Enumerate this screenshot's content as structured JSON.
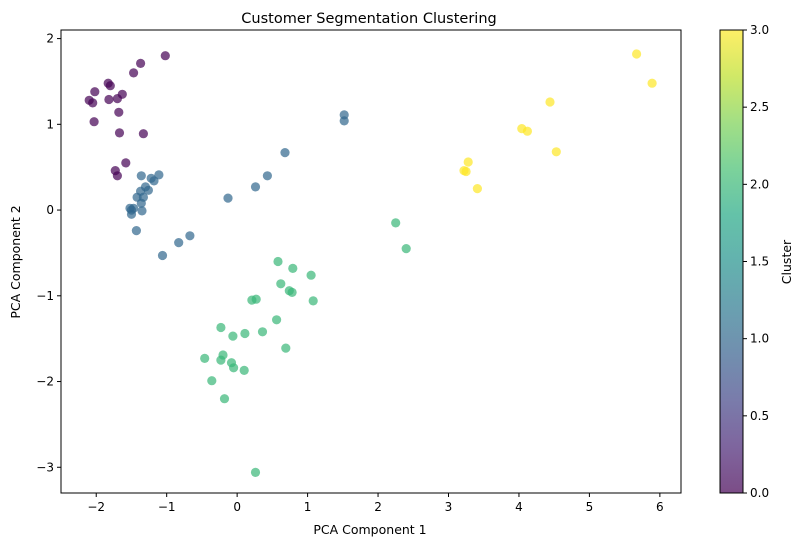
{
  "chart_data": {
    "type": "scatter",
    "title": "Customer Segmentation Clustering",
    "xlabel": "PCA Component 1",
    "ylabel": "PCA Component 2",
    "xlim": [
      -2.5,
      6.3
    ],
    "ylim": [
      -3.3,
      2.1
    ],
    "x_ticks": [
      -2,
      -1,
      0,
      1,
      2,
      3,
      4,
      5,
      6
    ],
    "x_tick_labels": [
      "−2",
      "−1",
      "0",
      "1",
      "2",
      "3",
      "4",
      "5",
      "6"
    ],
    "y_ticks": [
      -3,
      -2,
      -1,
      0,
      1,
      2
    ],
    "y_tick_labels": [
      "−3",
      "−2",
      "−1",
      "0",
      "1",
      "2"
    ],
    "grid": false,
    "colormap": "viridis",
    "point_alpha": 0.7,
    "colorbar": {
      "label": "Cluster",
      "range": [
        0.0,
        3.0
      ],
      "ticks": [
        0.0,
        0.5,
        1.0,
        1.5,
        2.0,
        2.5,
        3.0
      ],
      "tick_labels": [
        "0.0",
        "0.5",
        "1.0",
        "1.5",
        "2.0",
        "2.5",
        "3.0"
      ]
    },
    "points": [
      {
        "x": -2.1,
        "y": 1.28,
        "cluster": 0
      },
      {
        "x": -2.05,
        "y": 1.25,
        "cluster": 0
      },
      {
        "x": -2.02,
        "y": 1.38,
        "cluster": 0
      },
      {
        "x": -2.03,
        "y": 1.03,
        "cluster": 0
      },
      {
        "x": -1.83,
        "y": 1.48,
        "cluster": 0
      },
      {
        "x": -1.8,
        "y": 1.45,
        "cluster": 0
      },
      {
        "x": -1.82,
        "y": 1.29,
        "cluster": 0
      },
      {
        "x": -1.7,
        "y": 1.3,
        "cluster": 0
      },
      {
        "x": -1.63,
        "y": 1.35,
        "cluster": 0
      },
      {
        "x": -1.68,
        "y": 1.14,
        "cluster": 0
      },
      {
        "x": -1.67,
        "y": 0.9,
        "cluster": 0
      },
      {
        "x": -1.33,
        "y": 0.89,
        "cluster": 0
      },
      {
        "x": -1.58,
        "y": 0.55,
        "cluster": 0
      },
      {
        "x": -1.73,
        "y": 0.46,
        "cluster": 0
      },
      {
        "x": -1.7,
        "y": 0.4,
        "cluster": 0
      },
      {
        "x": -1.47,
        "y": 1.6,
        "cluster": 0
      },
      {
        "x": -1.37,
        "y": 1.71,
        "cluster": 0
      },
      {
        "x": -1.02,
        "y": 1.8,
        "cluster": 0
      },
      {
        "x": -1.52,
        "y": 0.02,
        "cluster": 1
      },
      {
        "x": -1.5,
        "y": -0.05,
        "cluster": 1
      },
      {
        "x": -1.47,
        "y": 0.02,
        "cluster": 1
      },
      {
        "x": -1.5,
        "y": 0.0,
        "cluster": 1
      },
      {
        "x": -1.42,
        "y": 0.15,
        "cluster": 1
      },
      {
        "x": -1.37,
        "y": 0.22,
        "cluster": 1
      },
      {
        "x": -1.36,
        "y": 0.08,
        "cluster": 1
      },
      {
        "x": -1.33,
        "y": 0.15,
        "cluster": 1
      },
      {
        "x": -1.35,
        "y": -0.01,
        "cluster": 1
      },
      {
        "x": -1.3,
        "y": 0.27,
        "cluster": 1
      },
      {
        "x": -1.26,
        "y": 0.23,
        "cluster": 1
      },
      {
        "x": -1.22,
        "y": 0.37,
        "cluster": 1
      },
      {
        "x": -1.18,
        "y": 0.34,
        "cluster": 1
      },
      {
        "x": -1.11,
        "y": 0.41,
        "cluster": 1
      },
      {
        "x": -1.36,
        "y": 0.4,
        "cluster": 1
      },
      {
        "x": -1.43,
        "y": -0.24,
        "cluster": 1
      },
      {
        "x": -1.06,
        "y": -0.53,
        "cluster": 1
      },
      {
        "x": -0.83,
        "y": -0.38,
        "cluster": 1
      },
      {
        "x": -0.67,
        "y": -0.3,
        "cluster": 1
      },
      {
        "x": -0.13,
        "y": 0.14,
        "cluster": 1
      },
      {
        "x": 0.26,
        "y": 0.27,
        "cluster": 1
      },
      {
        "x": 0.43,
        "y": 0.4,
        "cluster": 1
      },
      {
        "x": 0.68,
        "y": 0.67,
        "cluster": 1
      },
      {
        "x": 1.52,
        "y": 1.11,
        "cluster": 1
      },
      {
        "x": 1.52,
        "y": 1.04,
        "cluster": 1
      },
      {
        "x": 0.58,
        "y": -0.6,
        "cluster": 2
      },
      {
        "x": 0.79,
        "y": -0.68,
        "cluster": 2
      },
      {
        "x": 1.05,
        "y": -0.76,
        "cluster": 2
      },
      {
        "x": 0.62,
        "y": -0.86,
        "cluster": 2
      },
      {
        "x": 0.74,
        "y": -0.94,
        "cluster": 2
      },
      {
        "x": 0.78,
        "y": -0.96,
        "cluster": 2
      },
      {
        "x": 1.08,
        "y": -1.06,
        "cluster": 2
      },
      {
        "x": 0.21,
        "y": -1.05,
        "cluster": 2
      },
      {
        "x": 0.27,
        "y": -1.04,
        "cluster": 2
      },
      {
        "x": 0.56,
        "y": -1.28,
        "cluster": 2
      },
      {
        "x": -0.23,
        "y": -1.37,
        "cluster": 2
      },
      {
        "x": 0.36,
        "y": -1.42,
        "cluster": 2
      },
      {
        "x": 0.11,
        "y": -1.44,
        "cluster": 2
      },
      {
        "x": -0.06,
        "y": -1.47,
        "cluster": 2
      },
      {
        "x": 0.69,
        "y": -1.61,
        "cluster": 2
      },
      {
        "x": -0.46,
        "y": -1.73,
        "cluster": 2
      },
      {
        "x": -0.2,
        "y": -1.69,
        "cluster": 2
      },
      {
        "x": -0.23,
        "y": -1.75,
        "cluster": 2
      },
      {
        "x": -0.08,
        "y": -1.78,
        "cluster": 2
      },
      {
        "x": -0.05,
        "y": -1.84,
        "cluster": 2
      },
      {
        "x": 0.1,
        "y": -1.87,
        "cluster": 2
      },
      {
        "x": -0.36,
        "y": -1.99,
        "cluster": 2
      },
      {
        "x": -0.18,
        "y": -2.2,
        "cluster": 2
      },
      {
        "x": 0.26,
        "y": -3.06,
        "cluster": 2
      },
      {
        "x": 2.25,
        "y": -0.15,
        "cluster": 2
      },
      {
        "x": 2.4,
        "y": -0.45,
        "cluster": 2
      },
      {
        "x": 5.67,
        "y": 1.82,
        "cluster": 3
      },
      {
        "x": 5.89,
        "y": 1.48,
        "cluster": 3
      },
      {
        "x": 4.44,
        "y": 1.26,
        "cluster": 3
      },
      {
        "x": 4.04,
        "y": 0.95,
        "cluster": 3
      },
      {
        "x": 4.12,
        "y": 0.92,
        "cluster": 3
      },
      {
        "x": 4.53,
        "y": 0.68,
        "cluster": 3
      },
      {
        "x": 3.28,
        "y": 0.56,
        "cluster": 3
      },
      {
        "x": 3.22,
        "y": 0.46,
        "cluster": 3
      },
      {
        "x": 3.25,
        "y": 0.45,
        "cluster": 3
      },
      {
        "x": 3.41,
        "y": 0.25,
        "cluster": 3
      }
    ]
  }
}
